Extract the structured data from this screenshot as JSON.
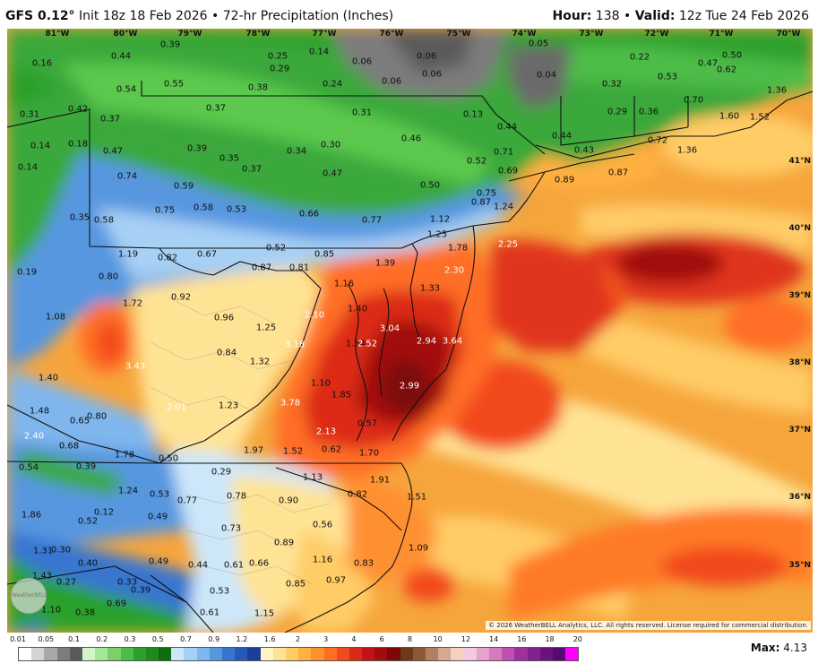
{
  "header": {
    "model": "GFS 0.12°",
    "init": "Init 18z 18 Feb 2026",
    "product": "72-hr Precipitation (Inches)",
    "hour_label": "Hour:",
    "hour": "138",
    "valid_label": "Valid:",
    "valid": "12z Tue 24 Feb 2026"
  },
  "lon_labels": [
    "81°W",
    "80°W",
    "79°W",
    "78°W",
    "77°W",
    "76°W",
    "75°W",
    "74°W",
    "73°W",
    "72°W",
    "71°W",
    "70°W"
  ],
  "lat_labels": [
    "41°N",
    "40°N",
    "39°N",
    "38°N",
    "37°N",
    "36°N",
    "35°N"
  ],
  "point_values": [
    "0.16",
    "0.44",
    "0.39",
    "0.25",
    "0.29",
    "0.14",
    "0.06",
    "0.06",
    "0.05",
    "0.22",
    "0.50",
    "0.54",
    "0.55",
    "0.38",
    "0.24",
    "0.06",
    "0.06",
    "0.04",
    "0.32",
    "0.53",
    "0.47",
    "0.62",
    "1.36",
    "0.31",
    "0.42",
    "0.37",
    "0.37",
    "0.31",
    "0.13",
    "0.44",
    "0.44",
    "0.29",
    "0.36",
    "0.70",
    "1.60",
    "1.52",
    "0.14",
    "0.18",
    "0.47",
    "0.39",
    "0.35",
    "0.37",
    "0.34",
    "0.30",
    "0.46",
    "0.71",
    "0.43",
    "0.72",
    "1.36",
    "0.14",
    "0.74",
    "0.59",
    "0.47",
    "0.52",
    "0.69",
    "0.87",
    "0.89",
    "0.35",
    "0.58",
    "0.75",
    "0.58",
    "0.53",
    "0.66",
    "0.77",
    "0.50",
    "0.75",
    "0.87",
    "1.24",
    "1.12",
    "1.19",
    "0.82",
    "0.67",
    "0.87",
    "0.52",
    "0.81",
    "0.85",
    "1.25",
    "1.78",
    "2.25",
    "0.19",
    "0.80",
    "1.16",
    "1.39",
    "2.30",
    "1.08",
    "1.72",
    "0.92",
    "0.96",
    "1.25",
    "1.40",
    "1.33",
    "2.10",
    "3.18",
    "1.54",
    "2.52",
    "3.04",
    "2.94",
    "3.64",
    "3.43",
    "0.84",
    "1.32",
    "1.40",
    "1.10",
    "1.85",
    "2.99",
    "3.78",
    "2.01",
    "1.23",
    "1.48",
    "0.80",
    "0.65",
    "0.57",
    "2.13",
    "2.40",
    "0.68",
    "0.62",
    "1.97",
    "1.52",
    "1.70",
    "1.78",
    "0.50",
    "0.54",
    "0.39",
    "0.29",
    "1.13",
    "1.24",
    "0.53",
    "0.77",
    "0.78",
    "0.90",
    "0.82",
    "1.91",
    "1.51",
    "1.86",
    "0.12",
    "0.52",
    "0.49",
    "0.73",
    "0.56",
    "1.31",
    "0.30",
    "0.40",
    "0.49",
    "0.44",
    "0.61",
    "0.66",
    "0.89",
    "1.16",
    "0.83",
    "1.09",
    "1.43",
    "0.27",
    "0.33",
    "0.39",
    "0.53",
    "0.85",
    "0.97",
    "1.10",
    "0.38",
    "0.69",
    "0.61",
    "1.15",
    "1.60"
  ],
  "legend": {
    "labels": [
      "0.01",
      "0.05",
      "0.1",
      "0.2",
      "0.3",
      "0.5",
      "0.7",
      "0.9",
      "1.2",
      "1.6",
      "2",
      "3",
      "4",
      "6",
      "8",
      "10",
      "12",
      "14",
      "16",
      "18",
      "20"
    ],
    "colors": [
      "#ffffff",
      "#d4d4d4",
      "#a8a8a8",
      "#7c7c7c",
      "#5a5a5a",
      "#d2f5c8",
      "#a6e69a",
      "#7ad16c",
      "#4ebc46",
      "#2aa12a",
      "#1c8a1c",
      "#0f6d0f",
      "#cde7fa",
      "#a7d0f5",
      "#7fb6ee",
      "#5797e0",
      "#3776d0",
      "#2858b8",
      "#1e3f99",
      "#fff5c4",
      "#ffe394",
      "#ffcc66",
      "#ffb040",
      "#ff9030",
      "#ff6e26",
      "#f24a1f",
      "#dc2a18",
      "#c01414",
      "#a10c0c",
      "#7d0808",
      "#6b3a1c",
      "#8b5a32",
      "#b08060",
      "#d6a890",
      "#f3d0c0",
      "#f4c8e0",
      "#e8a0d0",
      "#d67ac0",
      "#c050b0",
      "#a030a0",
      "#842090",
      "#6a1280",
      "#540a70",
      "#ff00ff"
    ]
  },
  "copyright": "© 2026 WeatherBELL Analytics, LLC. All rights reserved. License required for commercial distribution.",
  "logo": "WeatherBELL",
  "max": {
    "label": "Max:",
    "value": "4.13"
  }
}
